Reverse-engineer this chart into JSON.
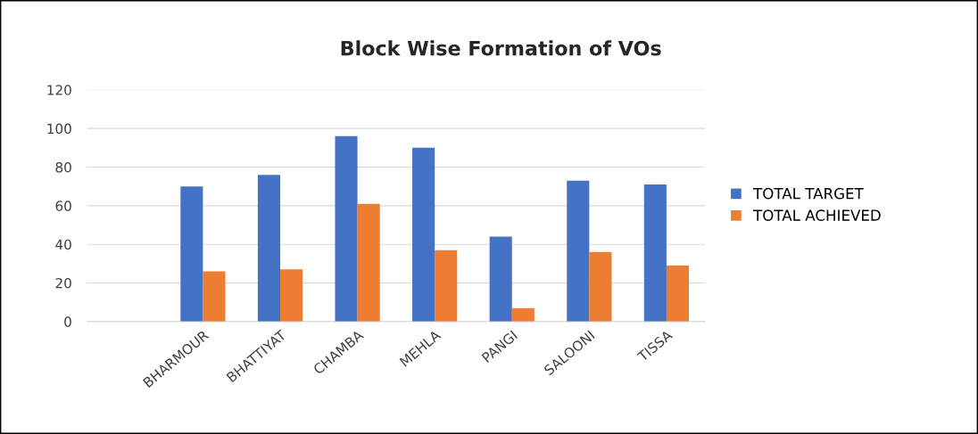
{
  "chart_data": {
    "type": "bar",
    "title": "Block Wise Formation of VOs",
    "categories": [
      null,
      "BHARMOUR",
      "BHATTIYAT",
      "CHAMBA",
      "MEHLA",
      "PANGI",
      "SALOONI",
      "TISSA"
    ],
    "series": [
      {
        "name": "TOTAL TARGET",
        "color": "#4472c4",
        "values": [
          null,
          70,
          76,
          96,
          90,
          44,
          73,
          71
        ]
      },
      {
        "name": "TOTAL ACHIEVED",
        "color": "#ed7d31",
        "values": [
          null,
          26,
          27,
          61,
          37,
          7,
          36,
          29
        ]
      }
    ],
    "ylim": [
      0,
      120
    ],
    "yticks": [
      0,
      20,
      40,
      60,
      80,
      100,
      120
    ],
    "grid": "y",
    "legend": "right"
  }
}
